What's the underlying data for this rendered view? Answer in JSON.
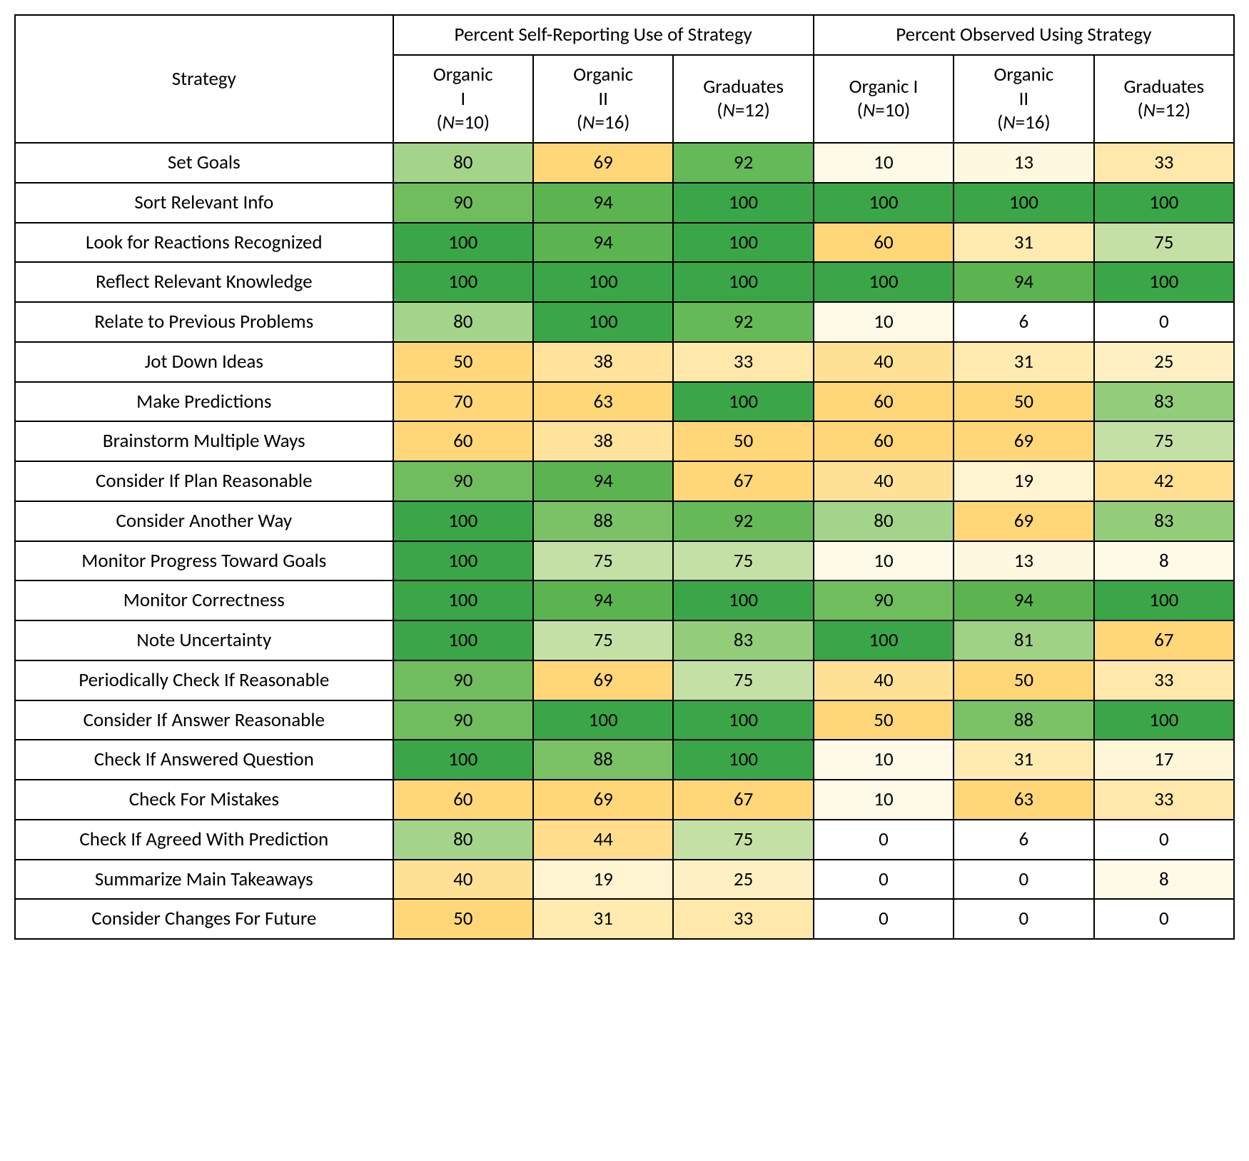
{
  "type": "heatmap-table",
  "font_family": "Calibri, Segoe UI, Arial, sans-serif",
  "header_fontsize": 27,
  "cell_fontsize": 27,
  "border_color": "#000000",
  "background_color": "#ffffff",
  "text_color": "#000000",
  "color_scale": {
    "0": "#ffffff",
    "6": "#ffffff",
    "8": "#fffae8",
    "10": "#fffae8",
    "13": "#fff8e0",
    "17": "#fff6d8",
    "19": "#fff4d0",
    "25": "#fff0c4",
    "31": "#ffeab0",
    "33": "#ffe8aa",
    "38": "#ffe39c",
    "40": "#ffe196",
    "42": "#ffdf90",
    "44": "#ffdd8a",
    "50": "#ffd778",
    "60": "#ffd778",
    "63": "#ffd778",
    "67": "#ffd778",
    "69": "#ffd778",
    "70": "#ffd778",
    "75": "#c5e0a5",
    "80": "#a4d48a",
    "81": "#9fd285",
    "83": "#94cd7a",
    "88": "#7bc266",
    "90": "#70bd5e",
    "92": "#66b957",
    "94": "#5cb450",
    "100": "#3aa648"
  },
  "headers": {
    "strategy": "Strategy",
    "group1": "Percent Self-Reporting Use of Strategy",
    "group2": "Percent Observed Using Strategy",
    "sub": [
      {
        "line1": "Organic",
        "line2": "I",
        "n_prefix": "(",
        "n_label": "N",
        "n_eq": "=10)"
      },
      {
        "line1": "Organic",
        "line2": "II",
        "n_prefix": "(",
        "n_label": "N",
        "n_eq": "=16)"
      },
      {
        "line1": "Graduates",
        "line2": "",
        "n_prefix": "(",
        "n_label": "N",
        "n_eq": "=12)"
      },
      {
        "line1": "Organic I",
        "line2": "",
        "n_prefix": "(",
        "n_label": "N",
        "n_eq": "=10)"
      },
      {
        "line1": "Organic",
        "line2": "II",
        "n_prefix": "(",
        "n_label": "N",
        "n_eq": "=16)"
      },
      {
        "line1": "Graduates",
        "line2": "",
        "n_prefix": "(",
        "n_label": "N",
        "n_eq": "=12)"
      }
    ]
  },
  "rows": [
    {
      "label": "Set Goals",
      "vals": [
        80,
        69,
        92,
        10,
        13,
        33
      ],
      "colors": [
        "#a4d48a",
        "#ffd778",
        "#66b957",
        "#fffae8",
        "#fff8e0",
        "#ffe8aa"
      ]
    },
    {
      "label": "Sort Relevant Info",
      "vals": [
        90,
        94,
        100,
        100,
        100,
        100
      ],
      "colors": [
        "#70bd5e",
        "#5cb450",
        "#3aa648",
        "#3aa648",
        "#3aa648",
        "#3aa648"
      ]
    },
    {
      "label": "Look for Reactions Recognized",
      "vals": [
        100,
        94,
        100,
        60,
        31,
        75
      ],
      "colors": [
        "#3aa648",
        "#5cb450",
        "#3aa648",
        "#ffd778",
        "#ffeab0",
        "#c5e0a5"
      ]
    },
    {
      "label": "Reflect Relevant Knowledge",
      "vals": [
        100,
        100,
        100,
        100,
        94,
        100
      ],
      "colors": [
        "#3aa648",
        "#3aa648",
        "#3aa648",
        "#3aa648",
        "#5cb450",
        "#3aa648"
      ]
    },
    {
      "label": "Relate to Previous Problems",
      "vals": [
        80,
        100,
        92,
        10,
        6,
        0
      ],
      "colors": [
        "#a4d48a",
        "#3aa648",
        "#66b957",
        "#fffae8",
        "#ffffff",
        "#ffffff"
      ]
    },
    {
      "label": "Jot Down Ideas",
      "vals": [
        50,
        38,
        33,
        40,
        31,
        25
      ],
      "colors": [
        "#ffd778",
        "#ffe39c",
        "#ffe8aa",
        "#ffe196",
        "#ffeab0",
        "#fff0c4"
      ]
    },
    {
      "label": "Make Predictions",
      "vals": [
        70,
        63,
        100,
        60,
        50,
        83
      ],
      "colors": [
        "#ffd778",
        "#ffd778",
        "#3aa648",
        "#ffd778",
        "#ffd778",
        "#94cd7a"
      ]
    },
    {
      "label": "Brainstorm Multiple Ways",
      "vals": [
        60,
        38,
        50,
        60,
        69,
        75
      ],
      "colors": [
        "#ffd778",
        "#ffe39c",
        "#ffd778",
        "#ffd778",
        "#ffd778",
        "#c5e0a5"
      ]
    },
    {
      "label": "Consider If Plan Reasonable",
      "vals": [
        90,
        94,
        67,
        40,
        19,
        42
      ],
      "colors": [
        "#70bd5e",
        "#5cb450",
        "#ffd778",
        "#ffe196",
        "#fff4d0",
        "#ffdf90"
      ]
    },
    {
      "label": "Consider Another Way",
      "vals": [
        100,
        88,
        92,
        80,
        69,
        83
      ],
      "colors": [
        "#3aa648",
        "#7bc266",
        "#66b957",
        "#a4d48a",
        "#ffd778",
        "#94cd7a"
      ]
    },
    {
      "label": "Monitor Progress Toward Goals",
      "vals": [
        100,
        75,
        75,
        10,
        13,
        8
      ],
      "colors": [
        "#3aa648",
        "#c5e0a5",
        "#c5e0a5",
        "#fffae8",
        "#fff8e0",
        "#fffae8"
      ]
    },
    {
      "label": "Monitor Correctness",
      "vals": [
        100,
        94,
        100,
        90,
        94,
        100
      ],
      "colors": [
        "#3aa648",
        "#5cb450",
        "#3aa648",
        "#70bd5e",
        "#5cb450",
        "#3aa648"
      ]
    },
    {
      "label": "Note Uncertainty",
      "vals": [
        100,
        75,
        83,
        100,
        81,
        67
      ],
      "colors": [
        "#3aa648",
        "#c5e0a5",
        "#94cd7a",
        "#3aa648",
        "#9fd285",
        "#ffd778"
      ]
    },
    {
      "label": "Periodically Check If Reasonable",
      "vals": [
        90,
        69,
        75,
        40,
        50,
        33
      ],
      "colors": [
        "#70bd5e",
        "#ffd778",
        "#c5e0a5",
        "#ffe196",
        "#ffd778",
        "#ffe8aa"
      ]
    },
    {
      "label": "Consider If Answer Reasonable",
      "vals": [
        90,
        100,
        100,
        50,
        88,
        100
      ],
      "colors": [
        "#70bd5e",
        "#3aa648",
        "#3aa648",
        "#ffd778",
        "#7bc266",
        "#3aa648"
      ]
    },
    {
      "label": "Check If Answered Question",
      "vals": [
        100,
        88,
        100,
        10,
        31,
        17
      ],
      "colors": [
        "#3aa648",
        "#7bc266",
        "#3aa648",
        "#fffae8",
        "#ffeab0",
        "#fff6d8"
      ]
    },
    {
      "label": "Check For Mistakes",
      "vals": [
        60,
        69,
        67,
        10,
        63,
        33
      ],
      "colors": [
        "#ffd778",
        "#ffd778",
        "#ffd778",
        "#fffae8",
        "#ffd778",
        "#ffe8aa"
      ]
    },
    {
      "label": "Check If Agreed With Prediction",
      "vals": [
        80,
        44,
        75,
        0,
        6,
        0
      ],
      "colors": [
        "#a4d48a",
        "#ffdd8a",
        "#c5e0a5",
        "#ffffff",
        "#ffffff",
        "#ffffff"
      ]
    },
    {
      "label": "Summarize Main Takeaways",
      "vals": [
        40,
        19,
        25,
        0,
        0,
        8
      ],
      "colors": [
        "#ffe196",
        "#fff4d0",
        "#fff0c4",
        "#ffffff",
        "#ffffff",
        "#fffae8"
      ]
    },
    {
      "label": "Consider Changes For Future",
      "vals": [
        50,
        31,
        33,
        0,
        0,
        0
      ],
      "colors": [
        "#ffd778",
        "#ffeab0",
        "#ffe8aa",
        "#ffffff",
        "#ffffff",
        "#ffffff"
      ]
    }
  ]
}
